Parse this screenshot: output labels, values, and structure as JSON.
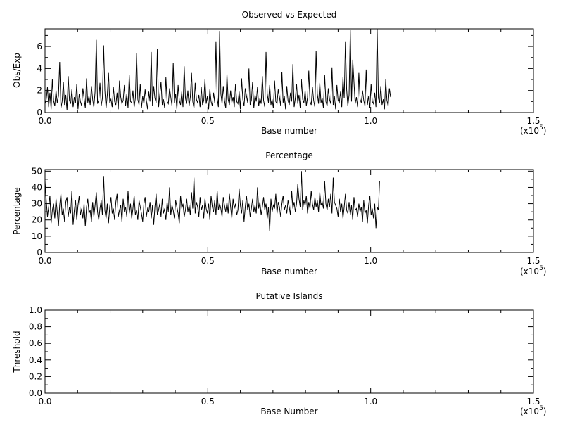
{
  "chart_data": [
    {
      "type": "line",
      "title": "Observed vs Expected",
      "xlabel": "Base number",
      "ylabel": "Obs/Exp",
      "xlim": [
        0,
        150000
      ],
      "ylim": [
        0,
        7.6
      ],
      "x_ticks": [
        "0.0",
        "0.5",
        "1.0",
        "1.5"
      ],
      "y_ticks": [
        "0",
        "2",
        "4",
        "6"
      ],
      "x_tick_values": [
        0,
        50000,
        100000,
        150000
      ],
      "y_tick_values": [
        0,
        2,
        4,
        6
      ],
      "x_scale_label": "(x10",
      "x_scale_exp": "5",
      "x_scale_close": ")",
      "series": [
        {
          "x_step": 375,
          "values": [
            0.8,
            1.2,
            2.3,
            0.5,
            1.8,
            0.3,
            3.0,
            1.1,
            0.6,
            2.0,
            0.9,
            1.5,
            4.6,
            0.4,
            1.0,
            2.8,
            0.7,
            1.6,
            0.2,
            3.3,
            1.1,
            0.8,
            2.1,
            0.5,
            1.4,
            0.9,
            2.6,
            0.3,
            1.7,
            1.0,
            0.6,
            2.2,
            1.3,
            0.4,
            3.1,
            0.9,
            1.5,
            0.7,
            2.4,
            1.2,
            0.5,
            1.9,
            6.6,
            0.8,
            1.1,
            2.7,
            0.6,
            1.3,
            6.1,
            2.0,
            0.4,
            1.6,
            3.6,
            0.9,
            1.2,
            0.5,
            2.3,
            1.0,
            0.7,
            1.8,
            0.3,
            2.9,
            1.4,
            0.8,
            1.1,
            2.5,
            0.6,
            1.7,
            0.4,
            3.4,
            1.0,
            0.9,
            2.0,
            0.5,
            1.3,
            5.4,
            1.2,
            0.7,
            2.6,
            0.4,
            1.5,
            0.8,
            2.1,
            1.1,
            0.3,
            1.9,
            1.0,
            5.5,
            0.6,
            2.4,
            1.3,
            0.9,
            5.8,
            0.5,
            1.6,
            2.8,
            0.7,
            1.2,
            0.4,
            3.2,
            1.0,
            0.8,
            2.2,
            1.4,
            0.6,
            4.5,
            0.9,
            1.7,
            0.3,
            2.5,
            1.1,
            0.7,
            1.9,
            0.5,
            4.2,
            1.3,
            0.8,
            2.0,
            0.6,
            1.4,
            3.6,
            1.0,
            0.4,
            2.7,
            1.2,
            0.9,
            1.6,
            0.5,
            2.3,
            0.7,
            1.1,
            3.0,
            0.8,
            1.5,
            0.3,
            2.1,
            1.0,
            0.6,
            1.8,
            0.9,
            6.4,
            1.3,
            0.5,
            7.4,
            1.7,
            0.8,
            2.4,
            1.1,
            0.4,
            3.5,
            1.2,
            0.7,
            2.0,
            0.9,
            1.4,
            0.5,
            2.6,
            1.0,
            0.8,
            1.9,
            0.3,
            3.1,
            1.2,
            0.6,
            2.2,
            1.5,
            0.9,
            4.0,
            0.7,
            1.1,
            2.8,
            0.4,
            1.6,
            1.0,
            2.3,
            0.6,
            1.3,
            0.8,
            3.3,
            1.1,
            0.5,
            5.5,
            1.7,
            0.9,
            2.5,
            0.7,
            1.2,
            0.4,
            2.9,
            1.0,
            0.8,
            2.1,
            1.4,
            0.6,
            3.7,
            0.9,
            1.5,
            0.3,
            2.4,
            1.1,
            0.7,
            1.8,
            1.0,
            4.4,
            0.5,
            1.3,
            2.6,
            0.8,
            1.6,
            0.4,
            3.0,
            1.2,
            0.9,
            2.0,
            0.6,
            1.4,
            3.8,
            1.0,
            0.7,
            2.3,
            1.1,
            0.5,
            5.6,
            1.7,
            0.8,
            2.7,
            0.9,
            1.3,
            0.4,
            3.4,
            1.0,
            0.6,
            2.2,
            1.2,
            0.8,
            4.1,
            0.7,
            1.5,
            0.3,
            2.5,
            1.1,
            0.9,
            1.9,
            0.5,
            3.2,
            1.3,
            6.4,
            2.1,
            0.6,
            1.6,
            7.5,
            1.0,
            4.8,
            2.8,
            0.8,
            1.4,
            0.5,
            3.6,
            1.2,
            0.9,
            2.0,
            1.1,
            0.6,
            3.9,
            0.7,
            1.5,
            0.4,
            2.6,
            1.0,
            0.8,
            1.8,
            0.5,
            7.6,
            1.3,
            0.9,
            2.4,
            0.7,
            1.2,
            0.3,
            3.0,
            1.1,
            0.6,
            2.2,
            1.4
          ]
        }
      ]
    },
    {
      "type": "line",
      "title": "Percentage",
      "xlabel": "Base number",
      "ylabel": "Percentage",
      "xlim": [
        0,
        150000
      ],
      "ylim": [
        0,
        51
      ],
      "x_ticks": [
        "0.0",
        "0.5",
        "1.0",
        "1.5"
      ],
      "y_ticks": [
        "0",
        "10",
        "20",
        "30",
        "40",
        "50"
      ],
      "x_tick_values": [
        0,
        50000,
        100000,
        150000
      ],
      "y_tick_values": [
        0,
        10,
        20,
        30,
        40,
        50
      ],
      "x_scale_label": "(x10",
      "x_scale_exp": "5",
      "x_scale_close": ")",
      "series": [
        {
          "x_step": 375,
          "values": [
            44,
            32,
            22,
            28,
            35,
            18,
            26,
            30,
            21,
            33,
            25,
            16,
            29,
            36,
            23,
            27,
            19,
            31,
            34,
            22,
            28,
            24,
            38,
            17,
            26,
            32,
            20,
            29,
            35,
            23,
            27,
            21,
            30,
            16,
            28,
            33,
            24,
            26,
            19,
            31,
            22,
            29,
            37,
            25,
            20,
            27,
            32,
            23,
            47,
            26,
            21,
            30,
            18,
            28,
            34,
            24,
            27,
            20,
            31,
            36,
            22,
            26,
            29,
            19,
            33,
            25,
            28,
            22,
            38,
            24,
            30,
            21,
            27,
            35,
            23,
            26,
            20,
            32,
            28,
            24,
            19,
            30,
            34,
            22,
            27,
            25,
            31,
            21,
            29,
            17,
            28,
            36,
            23,
            26,
            30,
            22,
            33,
            24,
            27,
            20,
            31,
            25,
            40,
            23,
            29,
            26,
            21,
            32,
            28,
            24,
            18,
            35,
            27,
            30,
            22,
            26,
            33,
            25,
            29,
            23,
            37,
            27,
            46,
            24,
            31,
            28,
            22,
            34,
            26,
            29,
            21,
            33,
            27,
            24,
            30,
            20,
            35,
            28,
            25,
            32,
            23,
            38,
            26,
            30,
            27,
            22,
            34,
            29,
            25,
            31,
            24,
            36,
            28,
            21,
            33,
            27,
            30,
            23,
            26,
            39,
            29,
            24,
            32,
            19,
            28,
            35,
            26,
            30,
            22,
            27,
            33,
            25,
            29,
            24,
            40,
            27,
            31,
            23,
            28,
            34,
            26,
            30,
            21,
            28,
            13,
            33,
            25,
            29,
            27,
            36,
            24,
            31,
            28,
            22,
            30,
            35,
            26,
            29,
            24,
            32,
            28,
            23,
            38,
            27,
            31,
            25,
            30,
            42,
            33,
            28,
            50,
            26,
            32,
            29,
            35,
            24,
            31,
            27,
            38,
            30,
            26,
            34,
            28,
            32,
            25,
            37,
            29,
            31,
            27,
            44,
            30,
            26,
            33,
            28,
            36,
            24,
            46,
            31,
            29,
            27,
            22,
            33,
            25,
            30,
            21,
            28,
            36,
            26,
            24,
            31,
            23,
            29,
            20,
            34,
            26,
            27,
            22,
            30,
            25,
            28,
            19,
            32,
            24,
            26,
            18,
            29,
            35,
            23,
            27,
            21,
            30,
            15,
            28,
            26,
            44
          ]
        }
      ]
    },
    {
      "type": "line",
      "title": "Putative Islands",
      "xlabel": "Base Number",
      "ylabel": "Threshold",
      "xlim": [
        0,
        150000
      ],
      "ylim": [
        0,
        1
      ],
      "x_ticks": [
        "0.0",
        "0.5",
        "1.0",
        "1.5"
      ],
      "y_ticks": [
        "0.0",
        "0.2",
        "0.4",
        "0.6",
        "0.8",
        "1.0"
      ],
      "x_tick_values": [
        0,
        50000,
        100000,
        150000
      ],
      "y_tick_values": [
        0,
        0.2,
        0.4,
        0.6,
        0.8,
        1.0
      ],
      "x_scale_label": "(x10",
      "x_scale_exp": "5",
      "x_scale_close": ")",
      "series": []
    }
  ]
}
